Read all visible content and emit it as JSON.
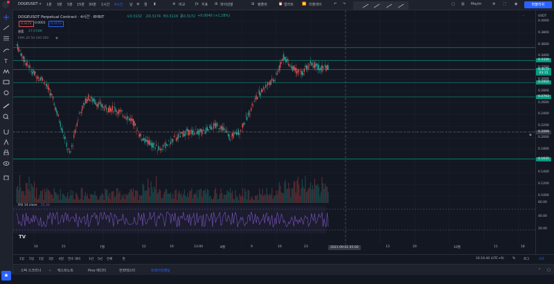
{
  "header": {
    "symbol": "DOGEUSDT",
    "intervals": [
      "1분",
      "3분",
      "5분",
      "15분",
      "30분",
      "1시간",
      "4시간"
    ],
    "active_interval": "4시간",
    "chart_type_labels": [
      "날",
      "주",
      "월"
    ],
    "compare": "비교",
    "indicators": "지표",
    "financials": "파이낸셜",
    "templates": "템플릿",
    "alert": "얼러트",
    "replay": "리플레이",
    "layout": "Maytn",
    "publish": "퍼블리쉬"
  },
  "legend": {
    "title": "DOGEUSDT Perpetual Contract · 4시간 · BYBIT",
    "open": "시0.3132",
    "high": "고0.3174",
    "low": "저0.3119",
    "close": "종0.3172",
    "change": "+0.0040 (+1.28%)",
    "bid": "0.3172",
    "spread": "0.0001",
    "ask": "0.3173",
    "volume_label": "볼륨",
    "volume_value": "27.074M",
    "ema_label": "EMA 20 50 100 200",
    "rsi_label": "RSI 14 close",
    "rsi_value": "55.34"
  },
  "price_scale": {
    "currency": "USDT",
    "ticks": [
      "0.4000",
      "0.3800",
      "0.3600",
      "0.3400",
      "0.3200",
      "0.3000",
      "0.2800",
      "0.2600",
      "0.2400",
      "0.2200",
      "0.2000",
      "0.1800",
      "0.1600",
      "0.1400",
      "0.1200",
      "0.1000"
    ],
    "tags": [
      {
        "text": "0.3330",
        "color": "#089981"
      },
      {
        "text": "0.3172",
        "sub": "03:15",
        "color": "#089981"
      },
      {
        "text": "0.2950",
        "color": "#089981"
      },
      {
        "text": "0.2703",
        "color": "#089981"
      },
      {
        "text": "0.2099",
        "color": "#363a45"
      },
      {
        "text": "0.1635",
        "color": "#089981"
      }
    ],
    "rsi_ticks": [
      "60.00",
      "40.00",
      "20.00"
    ]
  },
  "time_axis": {
    "labels": [
      "14",
      "21",
      "7월",
      "12",
      "19",
      "13:00",
      "8월",
      "9",
      "16",
      "23",
      "13",
      "20",
      "10월",
      "11",
      "18"
    ],
    "crosshair_date": "2021-09-02",
    "crosshair_time": "05:00"
  },
  "bottom_toolbar": {
    "ranges": [
      "1일",
      "5일",
      "1달",
      "3달",
      "6달",
      "연초 대비",
      "1년",
      "5년",
      "전체"
    ],
    "clock": "16:16:40 (UTC+9)",
    "percent": "%",
    "log": "로그",
    "auto": "오토"
  },
  "footer_tabs": [
    "스탁 스크리너",
    "텍스트노트",
    "Pine 에디터",
    "전략테스터",
    "트레이딩패널"
  ],
  "active_footer_tab": "트레이딩패널",
  "brand": "TV",
  "colors": {
    "up": "#26a69a",
    "down": "#ef5350",
    "accent": "#2962ff",
    "rsi": "#7e57c2",
    "hline": "#089981"
  }
}
